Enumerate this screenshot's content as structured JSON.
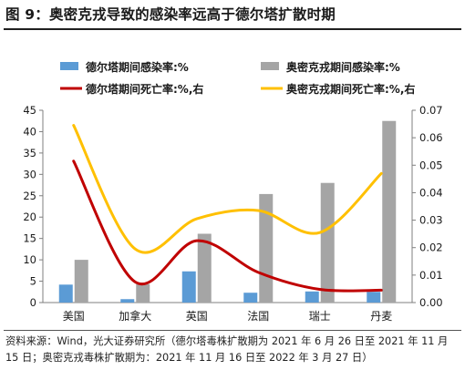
{
  "title": "图 9：奥密克戎导致的感染率远高于德尔塔扩散时期",
  "source": "资料来源：Wind，光大证券研究所（德尔塔毒株扩散期为 2021 年 6 月 26 日至 2021 年 11 月 15 日；奥密克戎毒株扩散期为：2021 年 11 月 16 日至 2022 年 3 月 27 日）",
  "chart_data": {
    "type": "bar",
    "categories": [
      "美国",
      "加拿大",
      "英国",
      "法国",
      "瑞士",
      "丹麦"
    ],
    "series": [
      {
        "name": "德尔塔期间感染率:%",
        "kind": "bar",
        "axis": "left",
        "color": "#5b9bd5",
        "values": [
          4.2,
          0.8,
          7.3,
          2.3,
          2.6,
          2.5
        ]
      },
      {
        "name": "奥密克戎期间感染率:%",
        "kind": "bar",
        "axis": "left",
        "color": "#a5a5a5",
        "values": [
          10.0,
          4.3,
          16.1,
          25.4,
          28.0,
          42.5
        ]
      },
      {
        "name": "德尔塔期间死亡率:%,右",
        "kind": "line",
        "axis": "right",
        "color": "#c00000",
        "values": [
          0.0515,
          0.0075,
          0.0225,
          0.011,
          0.0048,
          0.0045
        ]
      },
      {
        "name": "奥密克戎期间死亡率:%,右",
        "kind": "line",
        "axis": "right",
        "color": "#ffc000",
        "values": [
          0.0645,
          0.0195,
          0.0305,
          0.0335,
          0.0255,
          0.047
        ]
      }
    ],
    "y_left": {
      "min": 0,
      "max": 45,
      "ticks": [
        0,
        5,
        10,
        15,
        20,
        25,
        30,
        35,
        40,
        45
      ]
    },
    "y_right": {
      "min": 0,
      "max": 0.07,
      "ticks": [
        "0.00",
        "0.01",
        "0.02",
        "0.03",
        "0.04",
        "0.05",
        "0.06",
        "0.07"
      ]
    },
    "grid": false,
    "legend_position": "top"
  }
}
